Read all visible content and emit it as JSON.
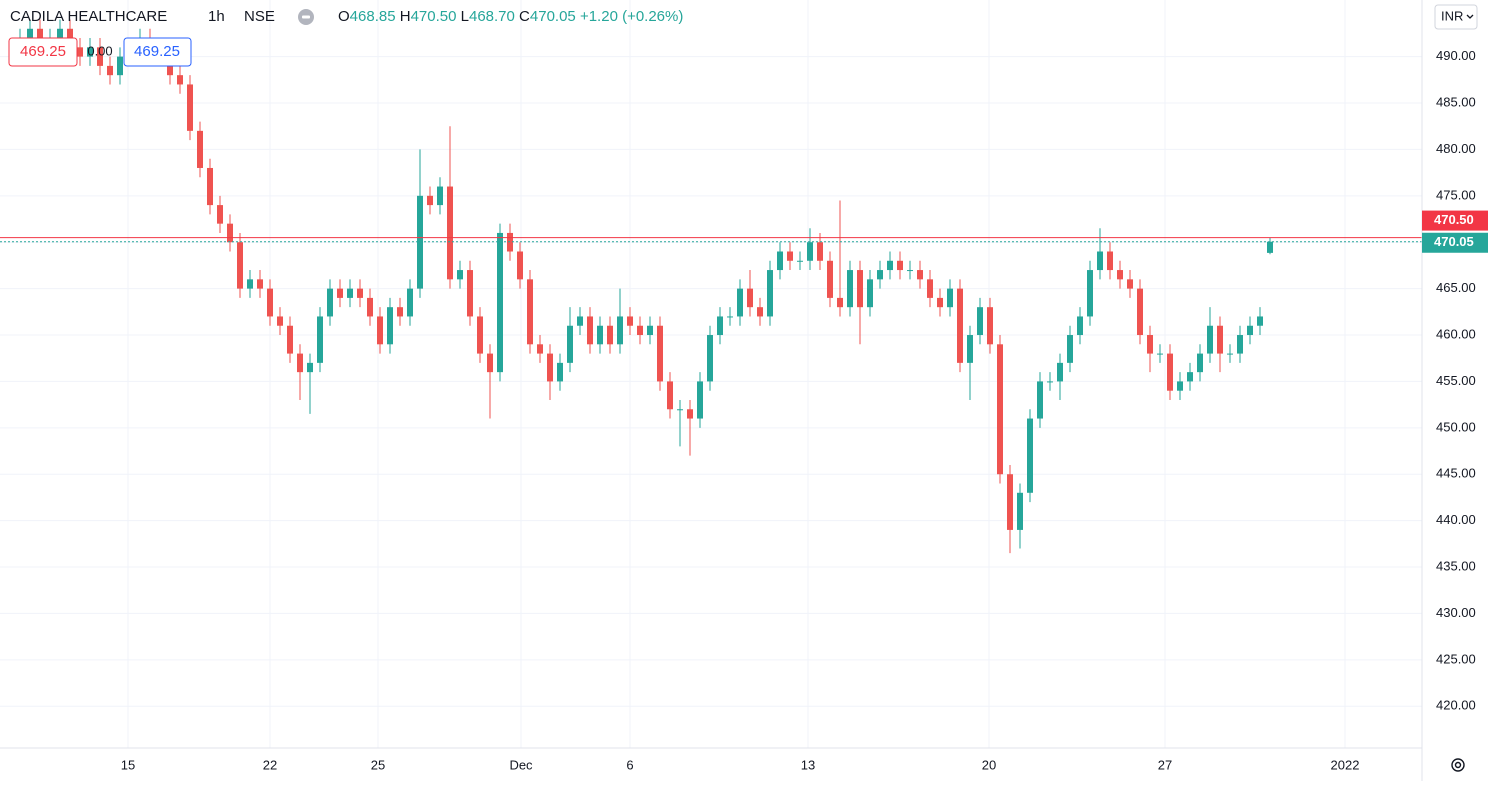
{
  "header": {
    "symbol": "CADILA HEALTHCARE",
    "interval": "1h",
    "exchange": "NSE",
    "open_label": "O",
    "open": "468.85",
    "high_label": "H",
    "high": "470.50",
    "low_label": "L",
    "low": "468.70",
    "close_label": "C",
    "close": "470.05",
    "change": "+1.20 (+0.26%)",
    "sell_price": "469.25",
    "spread": "0.00",
    "buy_price": "469.25",
    "currency": "INR"
  },
  "chart_data": {
    "type": "candlestick",
    "up_color": "#26a69a",
    "down_color": "#ef5350",
    "grid": true,
    "xlim": [
      -2,
      140.2
    ],
    "ylim": [
      415.5,
      496.1
    ],
    "xticks": [
      {
        "value": 10.8,
        "label": "15"
      },
      {
        "value": 25,
        "label": "22"
      },
      {
        "value": 35.8,
        "label": "25"
      },
      {
        "value": 50.1,
        "label": "Dec"
      },
      {
        "value": 61,
        "label": "6"
      },
      {
        "value": 78.8,
        "label": "13"
      },
      {
        "value": 96.9,
        "label": "20"
      },
      {
        "value": 114.5,
        "label": "27"
      },
      {
        "value": 132.5,
        "label": "2022"
      }
    ],
    "yticks": [
      {
        "value": 420,
        "label": "420.00"
      },
      {
        "value": 425,
        "label": "425.00"
      },
      {
        "value": 430,
        "label": "430.00"
      },
      {
        "value": 435,
        "label": "435.00"
      },
      {
        "value": 440,
        "label": "440.00"
      },
      {
        "value": 445,
        "label": "445.00"
      },
      {
        "value": 450,
        "label": "450.00"
      },
      {
        "value": 455,
        "label": "455.00"
      },
      {
        "value": 460,
        "label": "460.00"
      },
      {
        "value": 465,
        "label": "465.00"
      },
      {
        "value": 470,
        "label": "470.00"
      },
      {
        "value": 475,
        "label": "475.00"
      },
      {
        "value": 480,
        "label": "480.00"
      },
      {
        "value": 485,
        "label": "485.00"
      },
      {
        "value": 490,
        "label": "490.00"
      }
    ],
    "price_lines": [
      {
        "value": 470.5,
        "label": "470.50",
        "color": "#f23645"
      },
      {
        "value": 470.05,
        "label": "470.05",
        "color": "#26a69a"
      }
    ],
    "open": [
      491.5,
      492,
      493,
      491,
      492,
      493,
      491,
      490,
      491,
      489,
      488,
      490,
      491,
      492,
      491,
      490,
      488,
      487,
      482,
      478,
      474,
      472,
      470,
      465,
      466,
      465,
      462,
      461,
      458,
      456,
      457,
      462,
      465,
      464,
      465,
      464,
      462,
      459,
      463,
      462,
      465,
      475,
      474,
      476,
      466,
      467,
      462,
      458,
      456,
      471,
      469,
      466,
      459,
      458,
      455,
      457,
      461,
      462,
      459,
      461,
      459,
      462,
      461,
      460,
      461,
      455,
      452,
      452,
      451,
      455,
      460,
      462,
      462,
      465,
      463,
      462,
      467,
      469,
      468,
      468,
      470,
      468,
      464,
      463,
      467,
      463,
      466,
      467,
      468,
      467,
      467,
      466,
      464,
      463,
      465,
      457,
      460,
      463,
      459,
      445,
      439,
      443,
      451,
      455,
      455,
      457,
      460,
      462,
      467,
      469,
      467,
      466,
      465,
      460,
      458,
      458,
      454,
      455,
      456,
      458,
      461,
      458,
      458,
      460,
      461,
      468.85
    ],
    "high": [
      493,
      494,
      494,
      493,
      494,
      494,
      492,
      492,
      492,
      490,
      491,
      492,
      493,
      493,
      492,
      491,
      489,
      488,
      483,
      479,
      475,
      473,
      471,
      467,
      467,
      466,
      463,
      462,
      459,
      458,
      463,
      466,
      466,
      466,
      466,
      465,
      463,
      464,
      464,
      466,
      480,
      476,
      477,
      482.5,
      468,
      468,
      463,
      459,
      472,
      472,
      470,
      467,
      460,
      459,
      458,
      463,
      463,
      463,
      462,
      462,
      465,
      463,
      462,
      462,
      462,
      456,
      453,
      453,
      456,
      461,
      463,
      463,
      466,
      467,
      464,
      468,
      470,
      470,
      469,
      471.5,
      471,
      469,
      474.5,
      468,
      468,
      467,
      468,
      469,
      469,
      468,
      468,
      467,
      465,
      466,
      466,
      461,
      464,
      464,
      460,
      446,
      444,
      452,
      456,
      456,
      458,
      461,
      463,
      468,
      471.5,
      470,
      468,
      467,
      466,
      461,
      459,
      459,
      456,
      457,
      459,
      463,
      462,
      459,
      461,
      462,
      463,
      470.5
    ],
    "low": [
      490.5,
      491,
      490,
      490,
      491,
      490,
      489,
      489,
      488,
      487,
      487,
      489,
      490,
      490,
      489,
      487,
      486,
      481,
      477,
      473,
      471,
      469,
      464,
      464,
      464,
      461,
      460,
      457,
      453,
      451.5,
      456,
      461,
      463,
      463,
      463,
      461,
      458,
      458,
      461,
      461,
      464,
      473,
      473,
      465,
      465,
      461,
      457,
      451,
      455,
      468,
      465,
      458,
      457,
      453,
      454,
      456,
      460,
      458,
      458,
      458,
      458,
      460,
      459,
      459,
      454,
      451,
      448,
      447,
      450,
      454,
      459,
      461,
      461,
      462,
      461,
      461,
      466,
      467,
      467,
      467,
      467,
      463,
      462,
      462,
      459,
      462,
      465,
      466,
      466,
      466,
      465,
      463,
      462,
      462,
      456,
      453,
      459,
      458,
      444,
      436.5,
      437,
      442,
      450,
      454,
      453,
      456,
      459,
      461,
      466,
      466,
      465,
      464,
      459,
      456,
      457,
      453,
      453,
      454,
      455,
      457,
      456,
      457,
      457,
      459,
      460,
      468.7
    ],
    "close": [
      492,
      493,
      491,
      492,
      493,
      491,
      490,
      491,
      489,
      488,
      490,
      491,
      492,
      491,
      490,
      488,
      487,
      482,
      478,
      474,
      472,
      470,
      465,
      466,
      465,
      462,
      461,
      458,
      456,
      457,
      462,
      465,
      464,
      465,
      464,
      462,
      459,
      463,
      462,
      465,
      475,
      474,
      476,
      466,
      467,
      462,
      458,
      456,
      471,
      469,
      466,
      459,
      458,
      455,
      457,
      461,
      462,
      459,
      461,
      459,
      462,
      461,
      460,
      461,
      455,
      452,
      452,
      451,
      455,
      460,
      462,
      462,
      465,
      463,
      462,
      467,
      469,
      468,
      468,
      470,
      468,
      464,
      463,
      467,
      463,
      466,
      467,
      468,
      467,
      467,
      466,
      464,
      463,
      465,
      457,
      460,
      463,
      459,
      445,
      439,
      443,
      451,
      455,
      455,
      457,
      460,
      462,
      467,
      469,
      467,
      466,
      465,
      460,
      458,
      458,
      454,
      455,
      456,
      458,
      461,
      458,
      458,
      460,
      461,
      462,
      470.05
    ]
  }
}
